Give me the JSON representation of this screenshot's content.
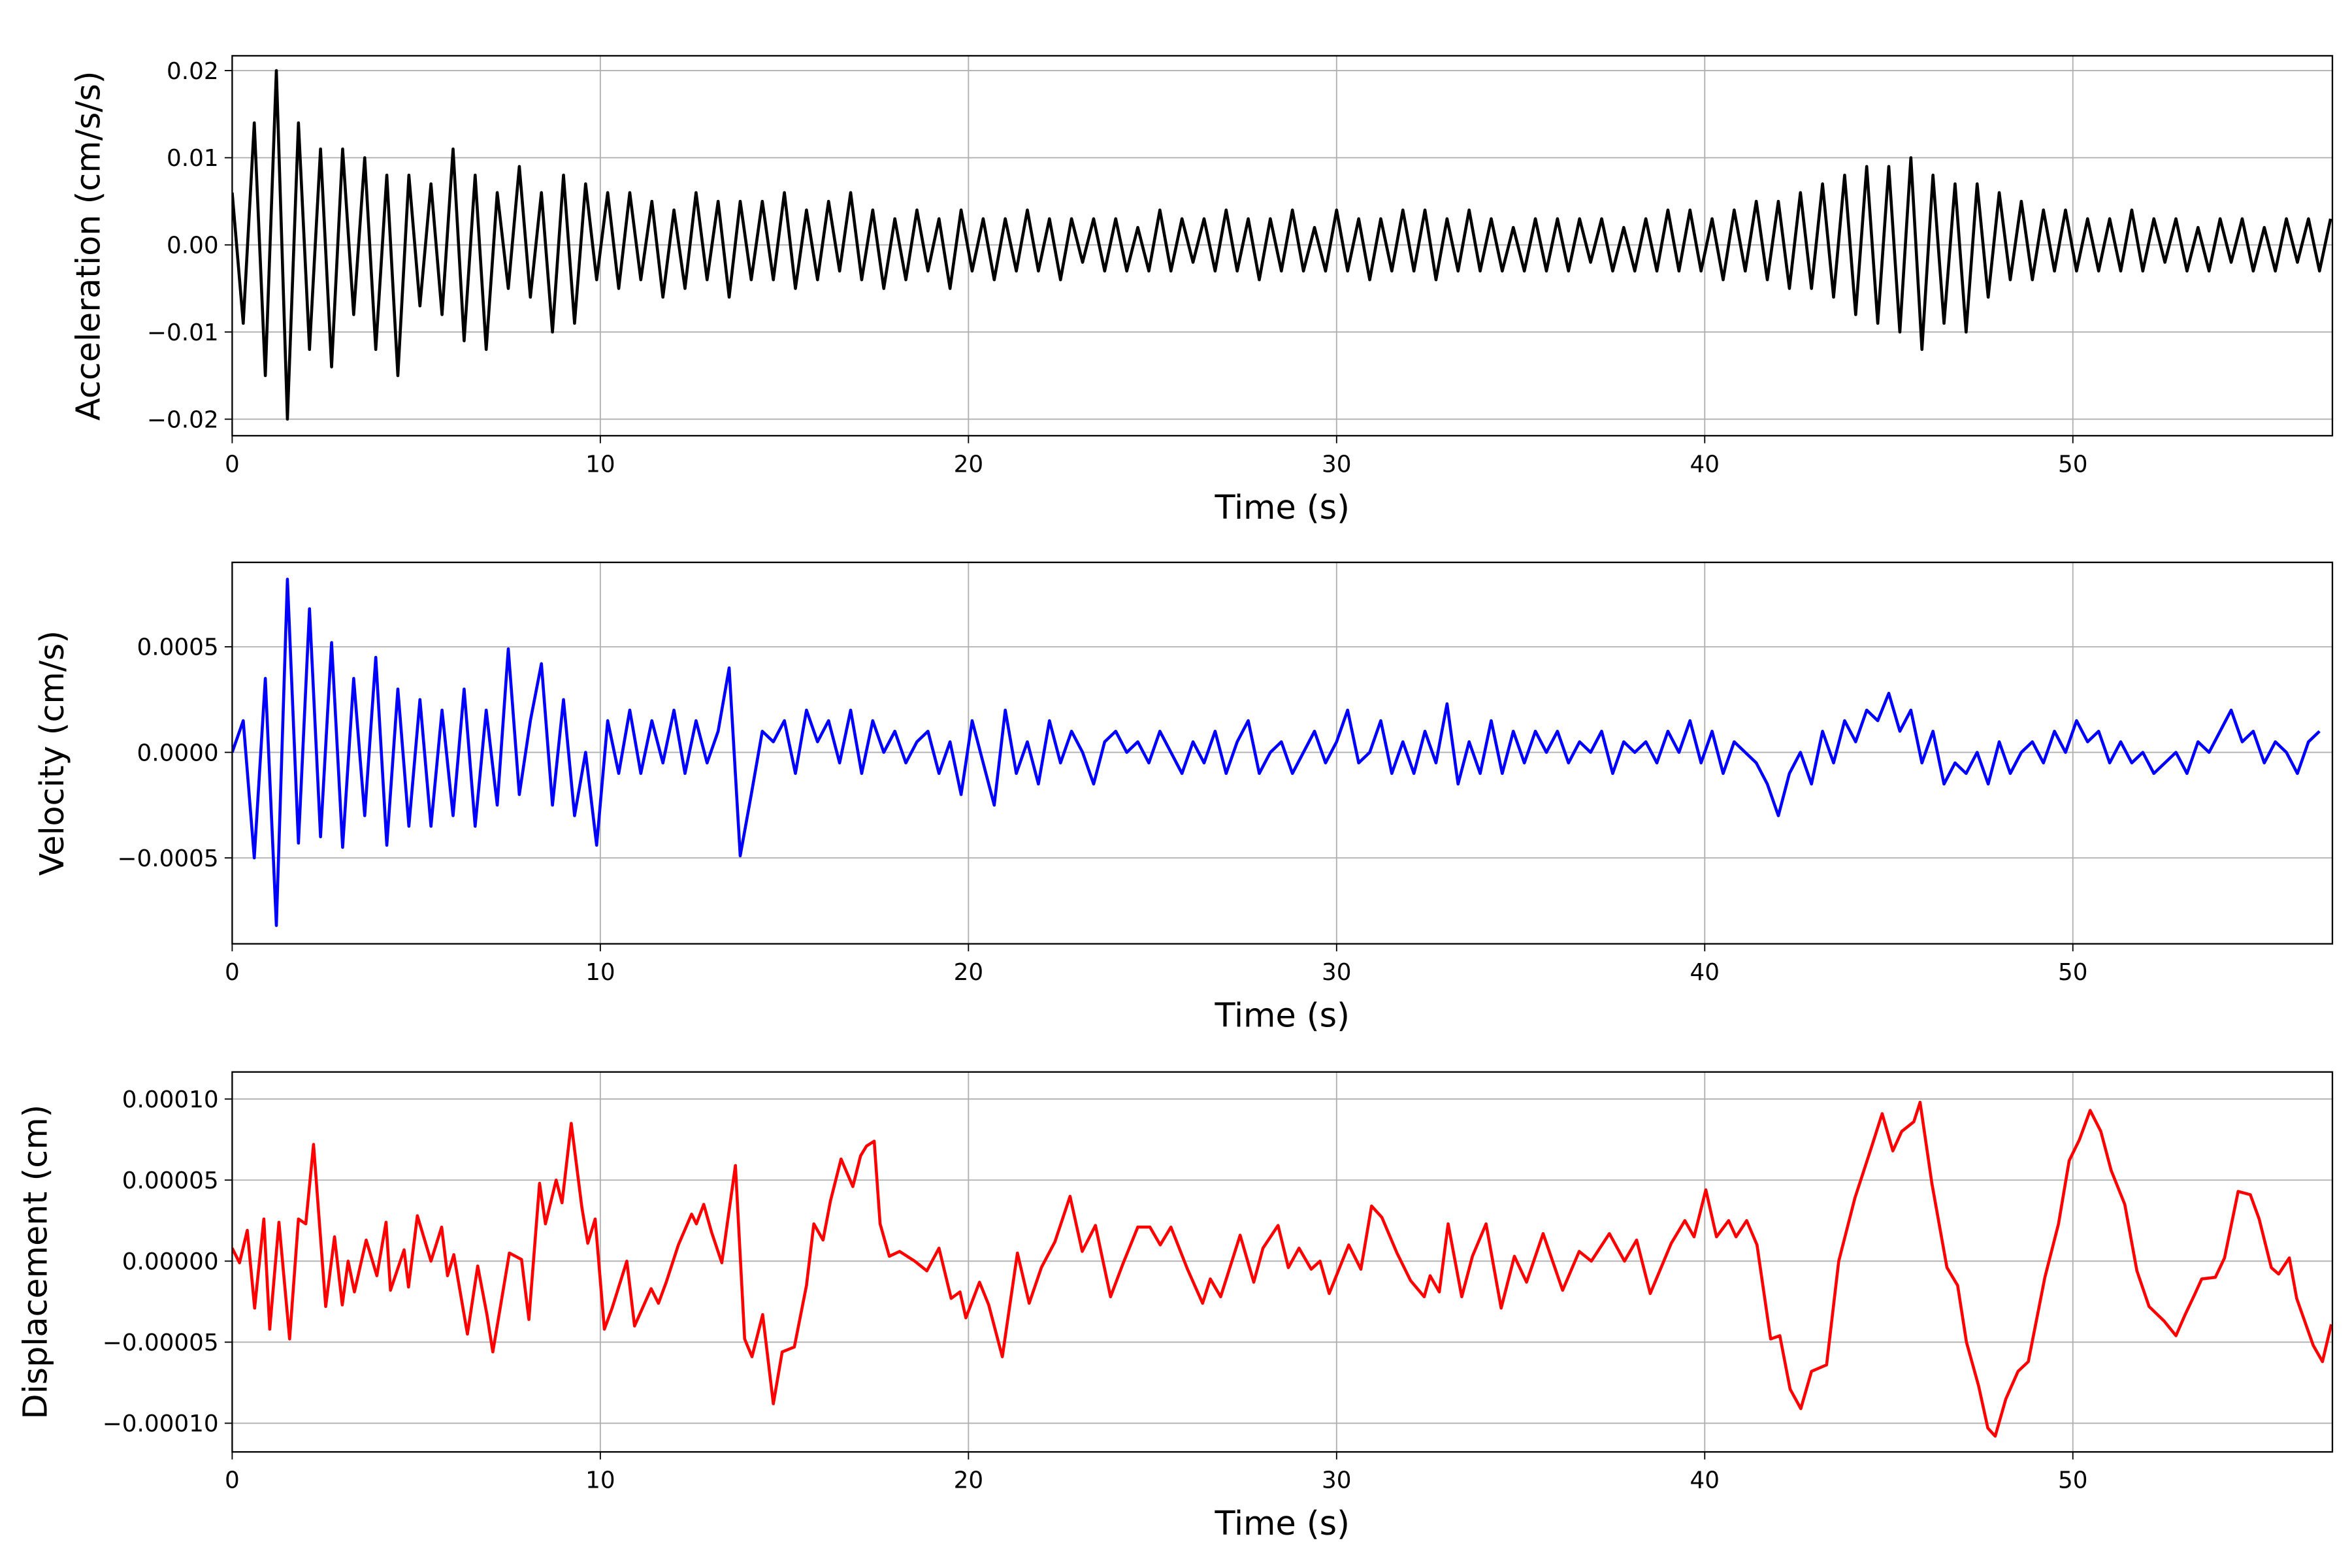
{
  "chart_data": [
    {
      "type": "line",
      "title": "",
      "xlabel": "Time (s)",
      "ylabel": "Acceleration (cm/s/s)",
      "xlim": [
        0,
        57.05
      ],
      "ylim": [
        -0.0219,
        0.0217
      ],
      "grid": true,
      "color": "#000000",
      "xticks": [
        0,
        10,
        20,
        30,
        40,
        50
      ],
      "xtick_labels": [
        "0",
        "10",
        "20",
        "30",
        "40",
        "50"
      ],
      "yticks": [
        0.02,
        0.01,
        0.0,
        -0.01,
        -0.02
      ],
      "ytick_labels": [
        "0.02",
        "0.01",
        "0.00",
        "−0.01",
        "−0.02"
      ],
      "series": [
        {
          "name": "acceleration",
          "t0": 0,
          "dt": 0.3,
          "values": [
            0.006,
            -0.009,
            0.014,
            -0.015,
            0.02,
            -0.02,
            0.014,
            -0.012,
            0.011,
            -0.014,
            0.011,
            -0.008,
            0.01,
            -0.012,
            0.008,
            -0.015,
            0.008,
            -0.007,
            0.007,
            -0.008,
            0.011,
            -0.011,
            0.008,
            -0.012,
            0.006,
            -0.005,
            0.009,
            -0.006,
            0.006,
            -0.01,
            0.008,
            -0.009,
            0.007,
            -0.004,
            0.006,
            -0.005,
            0.006,
            -0.004,
            0.005,
            -0.006,
            0.004,
            -0.005,
            0.006,
            -0.004,
            0.005,
            -0.006,
            0.005,
            -0.004,
            0.005,
            -0.004,
            0.006,
            -0.005,
            0.004,
            -0.004,
            0.005,
            -0.003,
            0.006,
            -0.004,
            0.004,
            -0.005,
            0.003,
            -0.004,
            0.004,
            -0.003,
            0.003,
            -0.005,
            0.004,
            -0.003,
            0.003,
            -0.004,
            0.003,
            -0.003,
            0.004,
            -0.003,
            0.003,
            -0.004,
            0.003,
            -0.002,
            0.003,
            -0.003,
            0.003,
            -0.003,
            0.002,
            -0.003,
            0.004,
            -0.003,
            0.003,
            -0.002,
            0.003,
            -0.003,
            0.004,
            -0.003,
            0.003,
            -0.004,
            0.003,
            -0.003,
            0.004,
            -0.003,
            0.002,
            -0.003,
            0.004,
            -0.003,
            0.003,
            -0.004,
            0.003,
            -0.003,
            0.004,
            -0.003,
            0.004,
            -0.004,
            0.003,
            -0.003,
            0.004,
            -0.003,
            0.003,
            -0.003,
            0.002,
            -0.003,
            0.003,
            -0.003,
            0.003,
            -0.003,
            0.003,
            -0.002,
            0.003,
            -0.003,
            0.002,
            -0.003,
            0.003,
            -0.003,
            0.004,
            -0.003,
            0.004,
            -0.003,
            0.003,
            -0.004,
            0.004,
            -0.003,
            0.005,
            -0.004,
            0.005,
            -0.005,
            0.006,
            -0.005,
            0.007,
            -0.006,
            0.008,
            -0.008,
            0.009,
            -0.009,
            0.009,
            -0.01,
            0.01,
            -0.012,
            0.008,
            -0.009,
            0.007,
            -0.01,
            0.007,
            -0.006,
            0.006,
            -0.004,
            0.005,
            -0.004,
            0.004,
            -0.003,
            0.004,
            -0.003,
            0.003,
            -0.003,
            0.003,
            -0.003,
            0.004,
            -0.003,
            0.003,
            -0.002,
            0.003,
            -0.003,
            0.002,
            -0.003,
            0.003,
            -0.002,
            0.003,
            -0.003,
            0.002,
            -0.003,
            0.003,
            -0.002,
            0.003,
            -0.003,
            0.003
          ]
        }
      ]
    },
    {
      "type": "line",
      "title": "",
      "xlabel": "Time (s)",
      "ylabel": "Velocity (cm/s)",
      "xlim": [
        0,
        57.05
      ],
      "ylim": [
        -0.000907,
        0.0009
      ],
      "grid": true,
      "color": "#0000ff",
      "xticks": [
        0,
        10,
        20,
        30,
        40,
        50
      ],
      "xtick_labels": [
        "0",
        "10",
        "20",
        "30",
        "40",
        "50"
      ],
      "yticks": [
        0.0005,
        0.0,
        -0.0005
      ],
      "ytick_labels": [
        "0.0005",
        "0.0000",
        "−0.0005"
      ],
      "series": [
        {
          "name": "velocity",
          "t0": 0,
          "dt": 0.3,
          "values": [
            0,
            0.00015,
            -0.0005,
            0.00035,
            -0.00082,
            0.00082,
            -0.00043,
            0.00068,
            -0.0004,
            0.00052,
            -0.00045,
            0.00035,
            -0.0003,
            0.00045,
            -0.00044,
            0.0003,
            -0.00035,
            0.00025,
            -0.00035,
            0.0002,
            -0.0003,
            0.0003,
            -0.00035,
            0.0002,
            -0.00025,
            0.00049,
            -0.0002,
            0.00015,
            0.00042,
            -0.00025,
            0.00025,
            -0.0003,
            0,
            -0.00044,
            0.00015,
            -0.0001,
            0.0002,
            -0.0001,
            0.00015,
            -5e-05,
            0.0002,
            -0.0001,
            0.00015,
            -5e-05,
            0.0001,
            0.0004,
            -0.00049,
            -0.0002,
            0.0001,
            5e-05,
            0.00015,
            -0.0001,
            0.0002,
            5e-05,
            0.00015,
            -5e-05,
            0.0002,
            -0.0001,
            0.00015,
            0,
            0.0001,
            -5e-05,
            5e-05,
            0.0001,
            -0.0001,
            5e-05,
            -0.0002,
            0.00015,
            -5e-05,
            -0.00025,
            0.0002,
            -0.0001,
            5e-05,
            -0.00015,
            0.00015,
            -5e-05,
            0.0001,
            0,
            -0.00015,
            5e-05,
            0.0001,
            0,
            5e-05,
            -5e-05,
            0.0001,
            0,
            -0.0001,
            5e-05,
            -5e-05,
            0.0001,
            -0.0001,
            5e-05,
            0.00015,
            -0.0001,
            0,
            5e-05,
            -0.0001,
            0,
            0.0001,
            -5e-05,
            5e-05,
            0.0002,
            -5e-05,
            0,
            0.00015,
            -0.0001,
            5e-05,
            -0.0001,
            0.0001,
            -5e-05,
            0.00023,
            -0.00015,
            5e-05,
            -0.0001,
            0.00015,
            -0.0001,
            0.0001,
            -5e-05,
            0.0001,
            0,
            0.0001,
            -5e-05,
            5e-05,
            0,
            0.0001,
            -0.0001,
            5e-05,
            0,
            5e-05,
            -5e-05,
            0.0001,
            0,
            0.00015,
            -5e-05,
            0.0001,
            -0.0001,
            5e-05,
            0,
            -5e-05,
            -0.00015,
            -0.0003,
            -0.0001,
            0,
            -0.00015,
            0.0001,
            -5e-05,
            0.00015,
            5e-05,
            0.0002,
            0.00015,
            0.00028,
            0.0001,
            0.0002,
            -5e-05,
            0.0001,
            -0.00015,
            -5e-05,
            -0.0001,
            0,
            -0.00015,
            5e-05,
            -0.0001,
            0,
            5e-05,
            -5e-05,
            0.0001,
            0,
            0.00015,
            5e-05,
            0.0001,
            -5e-05,
            5e-05,
            -5e-05,
            0,
            -0.0001,
            -5e-05,
            0,
            -0.0001,
            5e-05,
            0,
            0.0001,
            0.0002,
            5e-05,
            0.0001,
            -5e-05,
            5e-05,
            0,
            -0.0001,
            5e-05,
            0.0001
          ]
        }
      ]
    },
    {
      "type": "line",
      "title": "",
      "xlabel": "Time (s)",
      "ylabel": "Displacement (cm)",
      "xlim": [
        0,
        57.05
      ],
      "ylim": [
        -0.0001177,
        0.0001167
      ],
      "grid": true,
      "color": "#ff0000",
      "xticks": [
        0,
        10,
        20,
        30,
        40,
        50
      ],
      "xtick_labels": [
        "0",
        "10",
        "20",
        "30",
        "40",
        "50"
      ],
      "yticks": [
        0.0001,
        5e-05,
        0.0,
        -5e-05,
        -0.0001
      ],
      "ytick_labels": [
        "0.00010",
        "0.00005",
        "0.00000",
        "−0.00005",
        "−0.00010"
      ],
      "series": [
        {
          "name": "displacement",
          "t": [
            0,
            0.2,
            0.41,
            0.61,
            0.86,
            1.02,
            1.27,
            1.56,
            1.8,
            2.0,
            2.21,
            2.54,
            2.78,
            2.99,
            3.15,
            3.32,
            3.64,
            3.93,
            4.18,
            4.3,
            4.67,
            4.79,
            5.03,
            5.4,
            5.69,
            5.85,
            6.02,
            6.39,
            6.67,
            6.92,
            7.08,
            7.53,
            7.86,
            8.06,
            8.35,
            8.51,
            8.8,
            8.96,
            9.21,
            9.5,
            9.66,
            9.86,
            10.11,
            10.32,
            10.72,
            10.93,
            11.38,
            11.58,
            11.79,
            12.12,
            12.48,
            12.61,
            12.81,
            13.02,
            13.3,
            13.67,
            13.92,
            14.12,
            14.41,
            14.7,
            14.94,
            15.27,
            15.6,
            15.8,
            16.05,
            16.25,
            16.54,
            16.86,
            17.07,
            17.23,
            17.44,
            17.6,
            17.85,
            18.13,
            18.54,
            18.87,
            19.2,
            19.53,
            19.77,
            19.93,
            20.3,
            20.55,
            20.92,
            21.33,
            21.65,
            21.98,
            22.35,
            22.76,
            23.09,
            23.45,
            23.86,
            24.19,
            24.6,
            24.93,
            25.21,
            25.5,
            25.95,
            26.36,
            26.57,
            26.85,
            27.38,
            27.75,
            28.0,
            28.41,
            28.69,
            28.98,
            29.31,
            29.55,
            29.8,
            30.33,
            30.66,
            30.95,
            31.23,
            31.64,
            32.01,
            32.38,
            32.54,
            32.79,
            33.03,
            33.4,
            33.69,
            34.06,
            34.47,
            34.83,
            35.16,
            35.61,
            36.14,
            36.59,
            36.92,
            37.41,
            37.82,
            38.15,
            38.52,
            39.09,
            39.46,
            39.71,
            40.03,
            40.32,
            40.65,
            40.85,
            41.14,
            41.42,
            41.79,
            42.04,
            42.32,
            42.61,
            42.9,
            43.31,
            43.64,
            44.08,
            44.54,
            44.82,
            45.11,
            45.35,
            45.68,
            45.85,
            46.17,
            46.58,
            46.87,
            47.11,
            47.44,
            47.69,
            47.89,
            48.18,
            48.51,
            48.79,
            49.24,
            49.61,
            49.9,
            50.18,
            50.47,
            50.76,
            51.04,
            51.41,
            51.74,
            52.07,
            52.48,
            52.8,
            53.05,
            53.3,
            53.5,
            53.87,
            54.12,
            54.49,
            54.82,
            55.06,
            55.39,
            55.59,
            55.88,
            56.08,
            56.53,
            56.78,
            57.02
          ],
          "values": [
            8e-06,
            -1e-06,
            1.9e-05,
            -2.9e-05,
            2.6e-05,
            -4.2e-05,
            2.4e-05,
            -4.8e-05,
            2.6e-05,
            2.3e-05,
            7.2e-05,
            -2.8e-05,
            1.5e-05,
            -2.7e-05,
            0,
            -1.9e-05,
            1.3e-05,
            -9e-06,
            2.4e-05,
            -1.8e-05,
            7e-06,
            -1.6e-05,
            2.8e-05,
            0,
            2.1e-05,
            -9e-06,
            4e-06,
            -4.5e-05,
            -3e-06,
            -3.3e-05,
            -5.6e-05,
            5e-06,
            1e-06,
            -3.6e-05,
            4.8e-05,
            2.3e-05,
            5e-05,
            3.6e-05,
            8.5e-05,
            3.3e-05,
            1.1e-05,
            2.6e-05,
            -4.2e-05,
            -2.9e-05,
            0,
            -4e-05,
            -1.7e-05,
            -2.6e-05,
            -1.3e-05,
            1e-05,
            2.9e-05,
            2.3e-05,
            3.5e-05,
            1.8e-05,
            -1e-06,
            5.9e-05,
            -4.8e-05,
            -5.9e-05,
            -3.3e-05,
            -8.8e-05,
            -5.6e-05,
            -5.3e-05,
            -1.5e-05,
            2.3e-05,
            1.3e-05,
            3.7e-05,
            6.3e-05,
            4.6e-05,
            6.5e-05,
            7.1e-05,
            7.4e-05,
            2.3e-05,
            3e-06,
            6e-06,
            0,
            -6e-06,
            8e-06,
            -2.3e-05,
            -1.9e-05,
            -3.5e-05,
            -1.3e-05,
            -2.7e-05,
            -5.9e-05,
            5e-06,
            -2.6e-05,
            -4e-06,
            1.2e-05,
            4e-05,
            6e-06,
            2.2e-05,
            -2.2e-05,
            -2e-06,
            2.1e-05,
            2.1e-05,
            1e-05,
            2.1e-05,
            -5e-06,
            -2.6e-05,
            -1.1e-05,
            -2.2e-05,
            1.6e-05,
            -1.3e-05,
            8e-06,
            2.2e-05,
            -4e-06,
            8e-06,
            -5e-06,
            0,
            -2e-05,
            1e-05,
            -5e-06,
            3.4e-05,
            2.7e-05,
            5e-06,
            -1.2e-05,
            -2.2e-05,
            -9e-06,
            -1.9e-05,
            2.3e-05,
            -2.2e-05,
            3e-06,
            2.3e-05,
            -2.9e-05,
            3e-06,
            -1.3e-05,
            1.7e-05,
            -1.8e-05,
            6e-06,
            0,
            1.7e-05,
            0,
            1.3e-05,
            -2e-05,
            1.1e-05,
            2.5e-05,
            1.5e-05,
            4.4e-05,
            1.5e-05,
            2.5e-05,
            1.5e-05,
            2.5e-05,
            1e-05,
            -4.8e-05,
            -4.6e-05,
            -7.9e-05,
            -9.1e-05,
            -6.8e-05,
            -6.4e-05,
            0,
            3.9e-05,
            7.1e-05,
            9.1e-05,
            6.8e-05,
            8e-05,
            8.6e-05,
            9.8e-05,
            4.8e-05,
            -4e-06,
            -1.5e-05,
            -5e-05,
            -7.7e-05,
            -0.000103,
            -0.000108,
            -8.5e-05,
            -6.8e-05,
            -6.2e-05,
            -1e-05,
            2.3e-05,
            6.2e-05,
            7.5e-05,
            9.3e-05,
            8e-05,
            5.6e-05,
            3.5e-05,
            -6e-06,
            -2.8e-05,
            -3.7e-05,
            -4.6e-05,
            -3.3e-05,
            -2.1e-05,
            -1.1e-05,
            -1e-05,
            2e-06,
            4.3e-05,
            4.1e-05,
            2.6e-05,
            -4e-06,
            -8e-06,
            2e-06,
            -2.3e-05,
            -5.2e-05,
            -6.2e-05,
            -3.9e-05
          ]
        }
      ]
    }
  ]
}
